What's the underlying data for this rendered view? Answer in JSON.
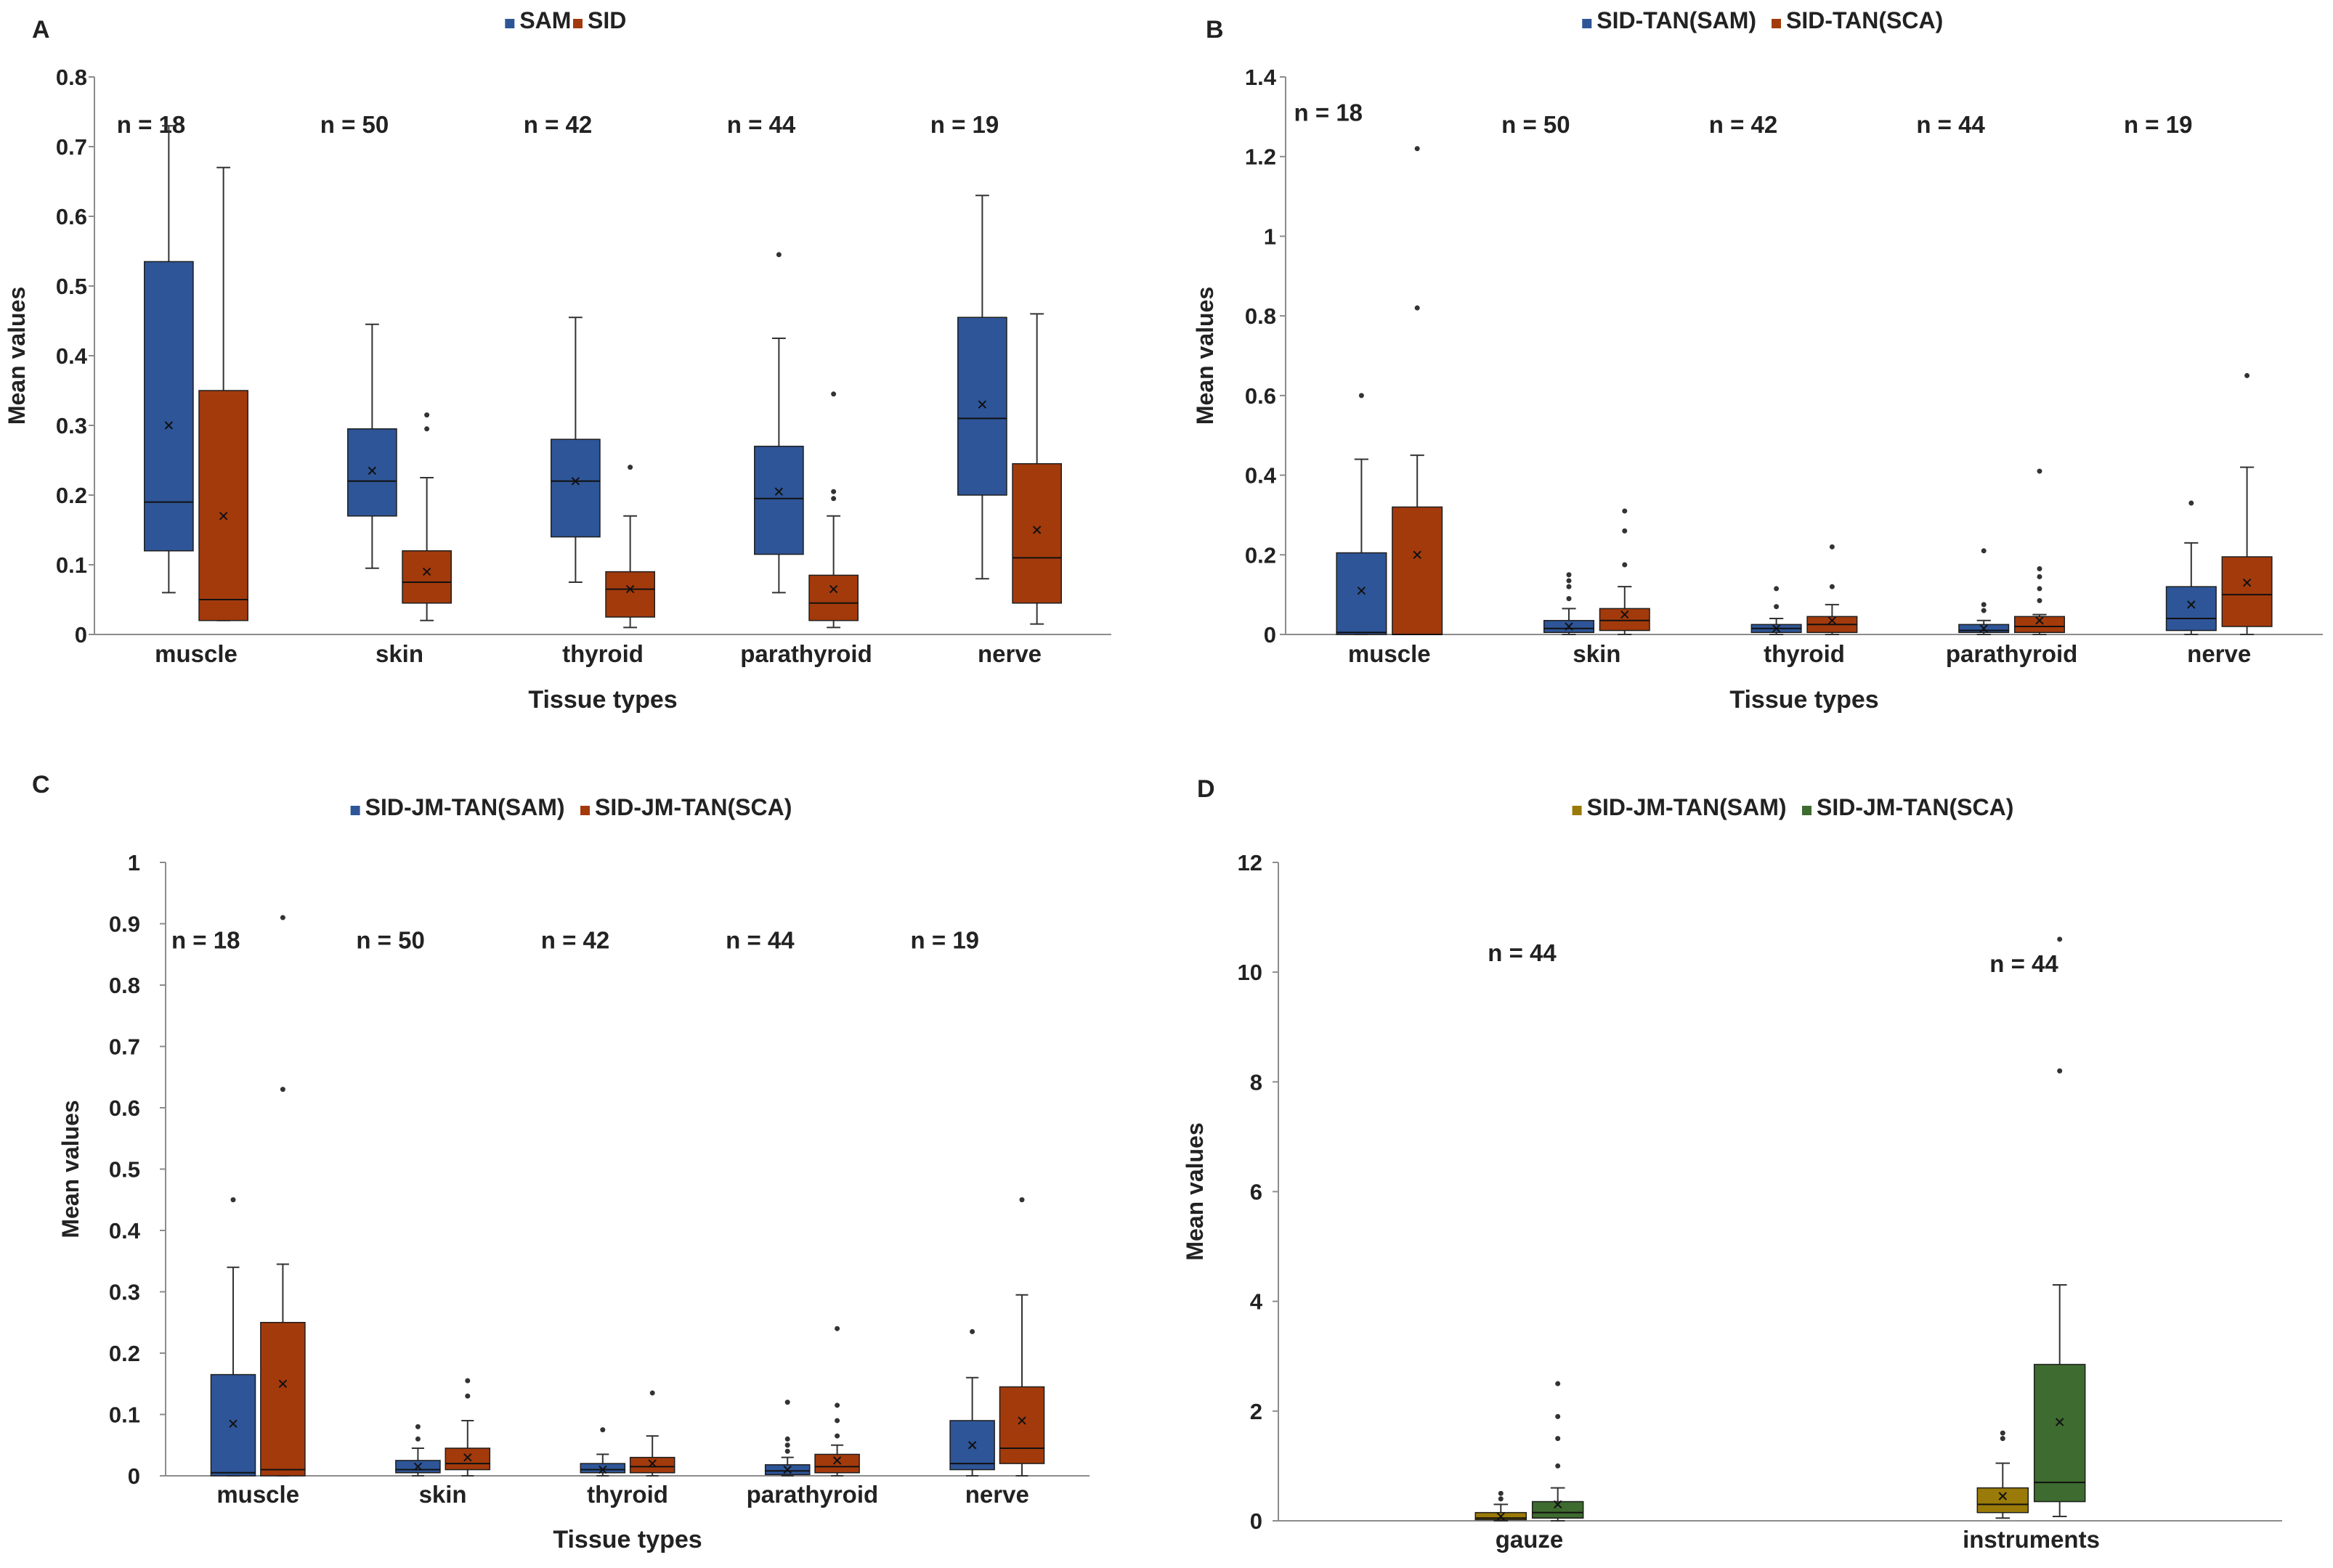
{
  "colors": {
    "blue": "#2E5597",
    "red": "#A33A0C",
    "olive": "#9A7A08",
    "green": "#3E6B2F",
    "axis": "#8C8C8C",
    "text": "#222222"
  },
  "chart_data": [
    {
      "type": "box",
      "panel_label": "A",
      "xlabel": "Tissue types",
      "ylabel": "Mean values",
      "ylim": [
        0,
        0.8
      ],
      "yticks": [
        "0",
        "0.1",
        "0.2",
        "0.3",
        "0.4",
        "0.5",
        "0.6",
        "0.7",
        "0.8"
      ],
      "legend": [
        "SAM",
        "SID"
      ],
      "series_colors": [
        "blue",
        "red"
      ],
      "categories": [
        "muscle",
        "skin",
        "thyroid",
        "parathyroid",
        "nerve"
      ],
      "n_labels": [
        "n = 18",
        "n = 50",
        "n = 42",
        "n = 44",
        "n = 19"
      ],
      "n_label_y": [
        0.72,
        0.72,
        0.72,
        0.72,
        0.72
      ],
      "boxes": [
        [
          {
            "min": 0.06,
            "q1": 0.12,
            "median": 0.19,
            "q3": 0.535,
            "max": 0.73,
            "mean": 0.3,
            "outliers": []
          },
          {
            "min": 0.02,
            "q1": 0.02,
            "median": 0.05,
            "q3": 0.35,
            "max": 0.67,
            "mean": 0.17,
            "outliers": []
          }
        ],
        [
          {
            "min": 0.095,
            "q1": 0.17,
            "median": 0.22,
            "q3": 0.295,
            "max": 0.445,
            "mean": 0.235,
            "outliers": []
          },
          {
            "min": 0.02,
            "q1": 0.045,
            "median": 0.075,
            "q3": 0.12,
            "max": 0.225,
            "mean": 0.09,
            "outliers": [
              0.295,
              0.315
            ]
          }
        ],
        [
          {
            "min": 0.075,
            "q1": 0.14,
            "median": 0.22,
            "q3": 0.28,
            "max": 0.455,
            "mean": 0.22,
            "outliers": []
          },
          {
            "min": 0.01,
            "q1": 0.025,
            "median": 0.065,
            "q3": 0.09,
            "max": 0.17,
            "mean": 0.065,
            "outliers": [
              0.24
            ]
          }
        ],
        [
          {
            "min": 0.06,
            "q1": 0.115,
            "median": 0.195,
            "q3": 0.27,
            "max": 0.425,
            "mean": 0.205,
            "outliers": [
              0.545
            ]
          },
          {
            "min": 0.01,
            "q1": 0.02,
            "median": 0.045,
            "q3": 0.085,
            "max": 0.17,
            "mean": 0.065,
            "outliers": [
              0.195,
              0.205,
              0.345
            ]
          }
        ],
        [
          {
            "min": 0.08,
            "q1": 0.2,
            "median": 0.31,
            "q3": 0.455,
            "max": 0.63,
            "mean": 0.33,
            "outliers": []
          },
          {
            "min": 0.015,
            "q1": 0.045,
            "median": 0.11,
            "q3": 0.245,
            "max": 0.46,
            "mean": 0.15,
            "outliers": []
          }
        ]
      ]
    },
    {
      "type": "box",
      "panel_label": "B",
      "xlabel": "Tissue types",
      "ylabel": "Mean values",
      "ylim": [
        0,
        1.4
      ],
      "yticks": [
        "0",
        "0.2",
        "0.4",
        "0.6",
        "0.8",
        "1",
        "1.2",
        "1.4"
      ],
      "legend": [
        "SID-TAN(SAM)",
        "SID-TAN(SCA)"
      ],
      "series_colors": [
        "blue",
        "red"
      ],
      "categories": [
        "muscle",
        "skin",
        "thyroid",
        "parathyroid",
        "nerve"
      ],
      "n_labels": [
        "n = 18",
        "n = 50",
        "n = 42",
        "n = 44",
        "n = 19"
      ],
      "n_label_y": [
        1.29,
        1.26,
        1.26,
        1.26,
        1.26
      ],
      "boxes": [
        [
          {
            "min": 0.0,
            "q1": 0.0,
            "median": 0.005,
            "q3": 0.205,
            "max": 0.44,
            "mean": 0.11,
            "outliers": [
              0.6
            ]
          },
          {
            "min": 0.0,
            "q1": 0.0,
            "median": 0.0,
            "q3": 0.32,
            "max": 0.45,
            "mean": 0.2,
            "outliers": [
              0.82,
              1.22
            ]
          }
        ],
        [
          {
            "min": 0.0,
            "q1": 0.005,
            "median": 0.015,
            "q3": 0.035,
            "max": 0.065,
            "mean": 0.02,
            "outliers": [
              0.09,
              0.12,
              0.135,
              0.15
            ]
          },
          {
            "min": 0.0,
            "q1": 0.01,
            "median": 0.035,
            "q3": 0.065,
            "max": 0.12,
            "mean": 0.05,
            "outliers": [
              0.175,
              0.26,
              0.31
            ]
          }
        ],
        [
          {
            "min": 0.0,
            "q1": 0.005,
            "median": 0.015,
            "q3": 0.025,
            "max": 0.04,
            "mean": 0.015,
            "outliers": [
              0.07,
              0.115
            ]
          },
          {
            "min": 0.0,
            "q1": 0.005,
            "median": 0.025,
            "q3": 0.045,
            "max": 0.075,
            "mean": 0.035,
            "outliers": [
              0.12,
              0.22
            ]
          }
        ],
        [
          {
            "min": 0.0,
            "q1": 0.005,
            "median": 0.01,
            "q3": 0.025,
            "max": 0.035,
            "mean": 0.015,
            "outliers": [
              0.06,
              0.075,
              0.21
            ]
          },
          {
            "min": 0.0,
            "q1": 0.005,
            "median": 0.02,
            "q3": 0.045,
            "max": 0.05,
            "mean": 0.035,
            "outliers": [
              0.085,
              0.115,
              0.145,
              0.165,
              0.41
            ]
          }
        ],
        [
          {
            "min": 0.0,
            "q1": 0.01,
            "median": 0.04,
            "q3": 0.12,
            "max": 0.23,
            "mean": 0.075,
            "outliers": [
              0.33
            ]
          },
          {
            "min": 0.0,
            "q1": 0.02,
            "median": 0.1,
            "q3": 0.195,
            "max": 0.42,
            "mean": 0.13,
            "outliers": [
              0.65
            ]
          }
        ]
      ]
    },
    {
      "type": "box",
      "panel_label": "C",
      "xlabel": "Tissue types",
      "ylabel": "Mean values",
      "ylim": [
        0,
        1
      ],
      "yticks": [
        "0",
        "0.1",
        "0.2",
        "0.3",
        "0.4",
        "0.5",
        "0.6",
        "0.7",
        "0.8",
        "0.9",
        "1"
      ],
      "legend": [
        "SID-JM-TAN(SAM)",
        "SID-JM-TAN(SCA)"
      ],
      "series_colors": [
        "blue",
        "red"
      ],
      "categories": [
        "muscle",
        "skin",
        "thyroid",
        "parathyroid",
        "nerve"
      ],
      "n_labels": [
        "n = 18",
        "n = 50",
        "n = 42",
        "n = 44",
        "n = 19"
      ],
      "n_label_y": [
        0.86,
        0.86,
        0.86,
        0.86,
        0.86
      ],
      "boxes": [
        [
          {
            "min": 0.0,
            "q1": 0.0,
            "median": 0.005,
            "q3": 0.165,
            "max": 0.34,
            "mean": 0.085,
            "outliers": [
              0.45
            ]
          },
          {
            "min": 0.0,
            "q1": 0.0,
            "median": 0.01,
            "q3": 0.25,
            "max": 0.345,
            "mean": 0.15,
            "outliers": [
              0.63,
              0.91
            ]
          }
        ],
        [
          {
            "min": 0.0,
            "q1": 0.005,
            "median": 0.01,
            "q3": 0.025,
            "max": 0.045,
            "mean": 0.015,
            "outliers": [
              0.06,
              0.08
            ]
          },
          {
            "min": 0.0,
            "q1": 0.01,
            "median": 0.02,
            "q3": 0.045,
            "max": 0.09,
            "mean": 0.03,
            "outliers": [
              0.13,
              0.155
            ]
          }
        ],
        [
          {
            "min": 0.0,
            "q1": 0.005,
            "median": 0.01,
            "q3": 0.02,
            "max": 0.035,
            "mean": 0.01,
            "outliers": [
              0.075
            ]
          },
          {
            "min": 0.0,
            "q1": 0.005,
            "median": 0.015,
            "q3": 0.03,
            "max": 0.065,
            "mean": 0.02,
            "outliers": [
              0.135
            ]
          }
        ],
        [
          {
            "min": 0.0,
            "q1": 0.002,
            "median": 0.008,
            "q3": 0.018,
            "max": 0.03,
            "mean": 0.01,
            "outliers": [
              0.04,
              0.05,
              0.06,
              0.12
            ]
          },
          {
            "min": 0.0,
            "q1": 0.005,
            "median": 0.015,
            "q3": 0.035,
            "max": 0.05,
            "mean": 0.025,
            "outliers": [
              0.065,
              0.09,
              0.115,
              0.24
            ]
          }
        ],
        [
          {
            "min": 0.0,
            "q1": 0.01,
            "median": 0.02,
            "q3": 0.09,
            "max": 0.16,
            "mean": 0.05,
            "outliers": [
              0.235
            ]
          },
          {
            "min": 0.0,
            "q1": 0.02,
            "median": 0.045,
            "q3": 0.145,
            "max": 0.295,
            "mean": 0.09,
            "outliers": [
              0.45
            ]
          }
        ]
      ]
    },
    {
      "type": "box",
      "panel_label": "D",
      "xlabel": "",
      "ylabel": "Mean values",
      "ylim": [
        0,
        12
      ],
      "yticks": [
        "0",
        "2",
        "4",
        "6",
        "8",
        "10",
        "12"
      ],
      "legend": [
        "SID-JM-TAN(SAM)",
        "SID-JM-TAN(SCA)"
      ],
      "series_colors": [
        "olive",
        "green"
      ],
      "categories": [
        "gauze",
        "instruments"
      ],
      "n_labels": [
        "n = 44",
        "n = 44"
      ],
      "n_label_y": [
        10.2,
        10.0
      ],
      "boxes": [
        [
          {
            "min": 0.0,
            "q1": 0.02,
            "median": 0.05,
            "q3": 0.15,
            "max": 0.3,
            "mean": 0.08,
            "outliers": [
              0.4,
              0.5
            ]
          },
          {
            "min": 0.0,
            "q1": 0.05,
            "median": 0.15,
            "q3": 0.35,
            "max": 0.6,
            "mean": 0.3,
            "outliers": [
              1.0,
              1.5,
              1.9,
              2.5
            ]
          }
        ],
        [
          {
            "min": 0.05,
            "q1": 0.15,
            "median": 0.3,
            "q3": 0.6,
            "max": 1.05,
            "mean": 0.45,
            "outliers": [
              1.5,
              1.6
            ]
          },
          {
            "min": 0.08,
            "q1": 0.35,
            "median": 0.7,
            "q3": 2.85,
            "max": 4.3,
            "mean": 1.8,
            "outliers": [
              8.2,
              10.6
            ]
          }
        ]
      ]
    }
  ]
}
